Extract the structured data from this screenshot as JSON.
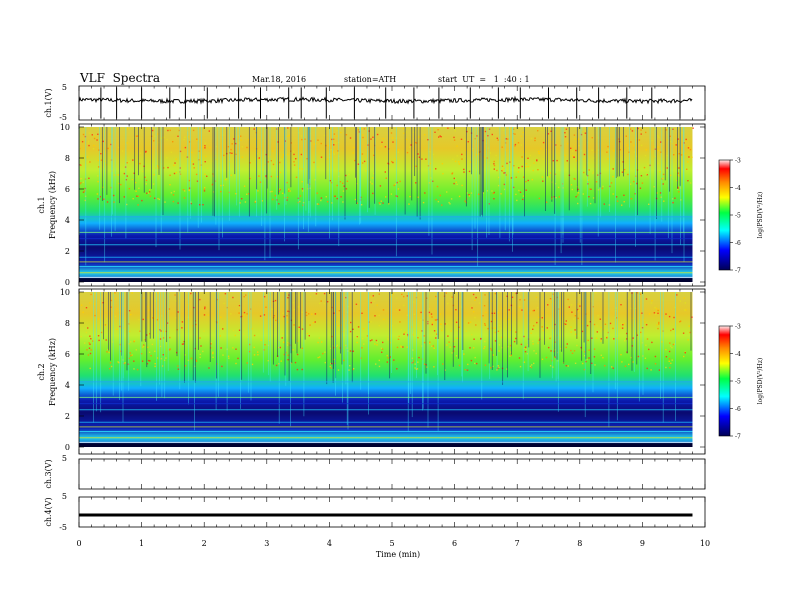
{
  "header": {
    "title": "VLF  Spectra",
    "date": "Mar.18, 2016",
    "station": "station=ATH",
    "start": "start  UT  =   1  :40 : 1"
  },
  "chart_data": {
    "type": "heatmap",
    "xlabel": "Time  (min)",
    "xlim": [
      0,
      10
    ],
    "x_ticks": [
      "0",
      "1",
      "2",
      "3",
      "4",
      "5",
      "6",
      "7",
      "8",
      "9",
      "10"
    ],
    "data_end_min": 9.8,
    "panels": [
      {
        "id": "ch1-wave",
        "type": "line",
        "ylabel": "ch.1(V)",
        "y_ticks": [
          "5",
          "-5"
        ],
        "ylim": [
          -5,
          5
        ],
        "baseline_v": 0.8,
        "spike_times_min": [
          0.35,
          0.6,
          1.0,
          1.45,
          1.7,
          2.05,
          2.55,
          2.9,
          3.35,
          3.55,
          3.95,
          4.4,
          4.9,
          5.35,
          5.75,
          6.25,
          6.7,
          7.05,
          7.5,
          7.95,
          8.3,
          8.75,
          9.15,
          9.6
        ]
      },
      {
        "id": "ch1-spec",
        "type": "heatmap",
        "ylabel_ch": "ch.1",
        "ylabel": "Frequency  (kHz)",
        "y_ticks": [
          "0",
          "2",
          "4",
          "6",
          "8",
          "10"
        ],
        "ylim": [
          0,
          10
        ],
        "colorbar_label": "log(PSD(V²/Hz)",
        "colorbar_ticks": [
          "-3",
          "-4",
          "-5",
          "-6",
          "-7"
        ],
        "clim": [
          -7,
          -3
        ]
      },
      {
        "id": "ch2-spec",
        "type": "heatmap",
        "ylabel_ch": "ch.2",
        "ylabel": "Frequency  (kHz)",
        "y_ticks": [
          "0",
          "2",
          "4",
          "6",
          "8",
          "10"
        ],
        "ylim": [
          0,
          10
        ],
        "colorbar_label": "log(PSD(V²/Hz)",
        "colorbar_ticks": [
          "-3",
          "-4",
          "-5",
          "-6",
          "-7"
        ],
        "clim": [
          -7,
          -3
        ]
      },
      {
        "id": "ch3-wave",
        "type": "line",
        "ylabel": "ch.3(V)",
        "y_ticks": [
          "5"
        ],
        "ylim": [
          -5,
          5
        ]
      },
      {
        "id": "ch4-wave",
        "type": "line",
        "ylabel": "ch.4(V)",
        "y_ticks": [
          "5",
          "-5"
        ],
        "ylim": [
          -5,
          5
        ],
        "baseline_v": -1.0
      }
    ]
  }
}
